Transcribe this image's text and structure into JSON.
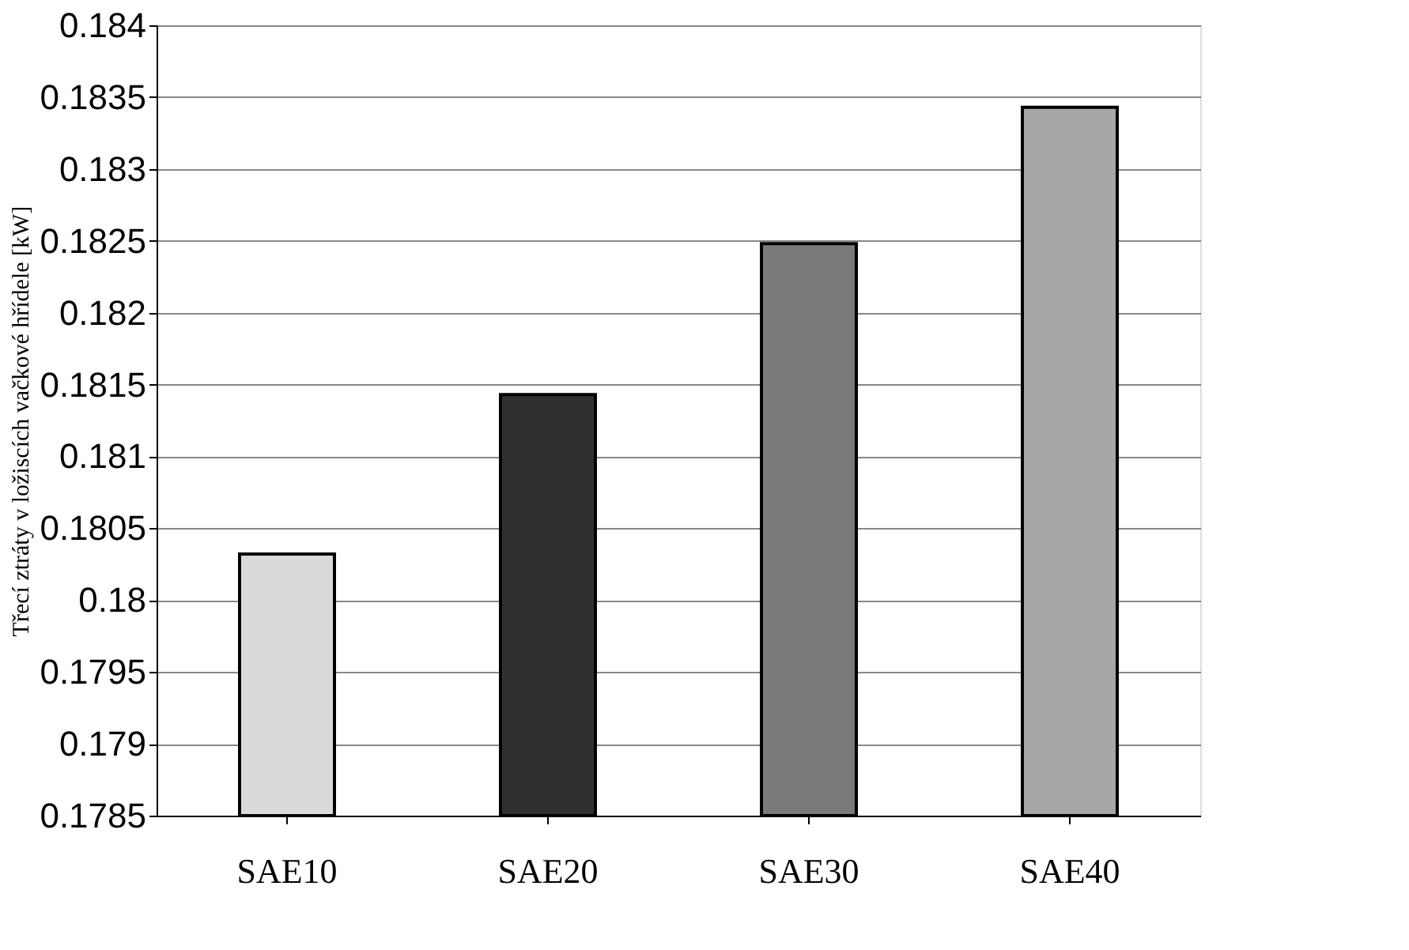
{
  "chart_data": {
    "type": "bar",
    "ylabel": "Třecí ztráty v ložiscích vačkové hřídele [kW]",
    "categories": [
      "SAE10",
      "SAE20",
      "SAE30",
      "SAE40"
    ],
    "values": [
      0.18032,
      0.18143,
      0.18248,
      0.18343
    ],
    "colors": [
      "#d9d9d9",
      "#303030",
      "#7a7a7a",
      "#a6a6a6"
    ],
    "ylim": [
      0.1785,
      0.184
    ],
    "yticks": [
      0.1785,
      0.179,
      0.1795,
      0.18,
      0.1805,
      0.181,
      0.1815,
      0.182,
      0.1825,
      0.183,
      0.1835,
      0.184
    ],
    "grid": "y"
  }
}
